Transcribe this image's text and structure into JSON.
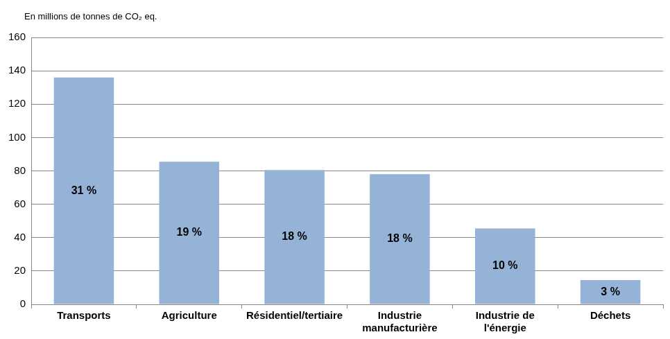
{
  "chart_data": {
    "type": "bar",
    "y_label": "En millions de tonnes de CO₂ eq.",
    "categories": [
      "Transports",
      "Agriculture",
      "Résidentiel/tertiaire",
      [
        "Industrie",
        "manufacturière"
      ],
      [
        "Industrie de",
        "l'énergie"
      ],
      "Déchets"
    ],
    "values": [
      136,
      85.5,
      80.5,
      78,
      45.5,
      14.5
    ],
    "share_labels": [
      "31 %",
      "19 %",
      "18 %",
      "18 %",
      "10 %",
      "3 %"
    ],
    "color": "#95b3d7",
    "ylim": [
      0,
      160
    ],
    "yticks": [
      0,
      20,
      40,
      60,
      80,
      100,
      120,
      140,
      160
    ],
    "grid": true
  }
}
